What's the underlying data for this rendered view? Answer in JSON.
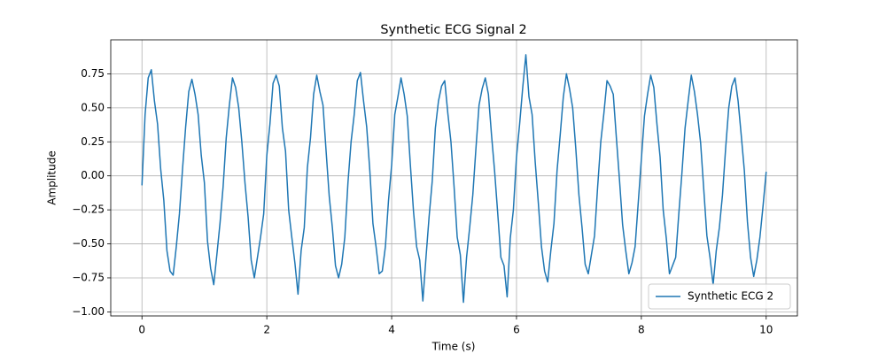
{
  "chart_data": {
    "type": "line",
    "title": "Synthetic ECG Signal 2",
    "xlabel": "Time (s)",
    "ylabel": "Amplitude",
    "grid": true,
    "legend": "lower right",
    "xlim": [
      -0.5,
      10.5
    ],
    "ylim": [
      -1.03,
      1.0
    ],
    "xticks": [
      0,
      2,
      4,
      6,
      8,
      10
    ],
    "yticks": [
      {
        "value": -1,
        "label": "−1.00"
      },
      {
        "value": -0.75,
        "label": "−0.75"
      },
      {
        "value": -0.5,
        "label": "−0.50"
      },
      {
        "value": -0.25,
        "label": "−0.25"
      },
      {
        "value": 0,
        "label": "0.00"
      },
      0.25,
      {
        "value": 0.5,
        "label": "0.50"
      },
      0.75
    ],
    "x": [
      0,
      0.05,
      0.1,
      0.15,
      0.2,
      0.25,
      0.3,
      0.35,
      0.4,
      0.45,
      0.5,
      0.55,
      0.6,
      0.65,
      0.7,
      0.75,
      0.8,
      0.85,
      0.9,
      0.95,
      1,
      1.05,
      1.1,
      1.15,
      1.2,
      1.25,
      1.3,
      1.35,
      1.4,
      1.45,
      1.5,
      1.55,
      1.6,
      1.65,
      1.7,
      1.75,
      1.8,
      1.85,
      1.9,
      1.95,
      2,
      2.05,
      2.1,
      2.15,
      2.2,
      2.25,
      2.3,
      2.35,
      2.4,
      2.45,
      2.5,
      2.55,
      2.6,
      2.65,
      2.7,
      2.75,
      2.8,
      2.85,
      2.9,
      2.95,
      3,
      3.05,
      3.1,
      3.15,
      3.2,
      3.25,
      3.3,
      3.35,
      3.4,
      3.45,
      3.5,
      3.55,
      3.6,
      3.65,
      3.7,
      3.75,
      3.8,
      3.85,
      3.9,
      3.95,
      4,
      4.05,
      4.1,
      4.15,
      4.2,
      4.25,
      4.3,
      4.35,
      4.4,
      4.45,
      4.5,
      4.55,
      4.6,
      4.65,
      4.7,
      4.75,
      4.8,
      4.85,
      4.9,
      4.95,
      5,
      5.05,
      5.1,
      5.15,
      5.2,
      5.25,
      5.3,
      5.35,
      5.4,
      5.45,
      5.5,
      5.55,
      5.6,
      5.65,
      5.7,
      5.75,
      5.8,
      5.85,
      5.9,
      5.95,
      6,
      6.05,
      6.1,
      6.15,
      6.2,
      6.25,
      6.3,
      6.35,
      6.4,
      6.45,
      6.5,
      6.55,
      6.6,
      6.65,
      6.7,
      6.75,
      6.8,
      6.85,
      6.9,
      6.95,
      7,
      7.05,
      7.1,
      7.15,
      7.2,
      7.25,
      7.3,
      7.35,
      7.4,
      7.45,
      7.5,
      7.55,
      7.6,
      7.65,
      7.7,
      7.75,
      7.8,
      7.85,
      7.9,
      7.95,
      8,
      8.05,
      8.1,
      8.15,
      8.2,
      8.25,
      8.3,
      8.35,
      8.4,
      8.45,
      8.5,
      8.55,
      8.6,
      8.65,
      8.7,
      8.75,
      8.8,
      8.85,
      8.9,
      8.95,
      9,
      9.05,
      9.1,
      9.15,
      9.2,
      9.25,
      9.3,
      9.35,
      9.4,
      9.45,
      9.5,
      9.55,
      9.6,
      9.65,
      9.7,
      9.75,
      9.8,
      9.85,
      9.9,
      9.95,
      10
    ],
    "series": [
      {
        "name": "Synthetic ECG 2",
        "color": "#1f77b4",
        "values": [
          -0.07,
          0.45,
          0.72,
          0.78,
          0.55,
          0.38,
          0.05,
          -0.18,
          -0.55,
          -0.7,
          -0.73,
          -0.52,
          -0.28,
          0.05,
          0.36,
          0.62,
          0.71,
          0.6,
          0.45,
          0.15,
          -0.05,
          -0.48,
          -0.68,
          -0.8,
          -0.58,
          -0.35,
          -0.08,
          0.28,
          0.52,
          0.72,
          0.65,
          0.5,
          0.25,
          -0.05,
          -0.3,
          -0.62,
          -0.75,
          -0.6,
          -0.45,
          -0.28,
          0.15,
          0.38,
          0.68,
          0.74,
          0.66,
          0.35,
          0.18,
          -0.25,
          -0.45,
          -0.64,
          -0.87,
          -0.55,
          -0.38,
          0.06,
          0.28,
          0.6,
          0.74,
          0.62,
          0.52,
          0.18,
          -0.15,
          -0.38,
          -0.66,
          -0.75,
          -0.65,
          -0.45,
          -0.05,
          0.25,
          0.45,
          0.7,
          0.76,
          0.55,
          0.36,
          0.04,
          -0.35,
          -0.52,
          -0.72,
          -0.7,
          -0.52,
          -0.18,
          0.08,
          0.45,
          0.58,
          0.72,
          0.6,
          0.44,
          0.08,
          -0.26,
          -0.52,
          -0.62,
          -0.92,
          -0.6,
          -0.3,
          -0.04,
          0.35,
          0.55,
          0.66,
          0.7,
          0.46,
          0.25,
          -0.08,
          -0.45,
          -0.58,
          -0.93,
          -0.6,
          -0.38,
          -0.14,
          0.2,
          0.52,
          0.64,
          0.72,
          0.6,
          0.3,
          0.03,
          -0.28,
          -0.6,
          -0.66,
          -0.89,
          -0.46,
          -0.25,
          0.14,
          0.38,
          0.65,
          0.89,
          0.58,
          0.45,
          0.1,
          -0.2,
          -0.52,
          -0.7,
          -0.78,
          -0.55,
          -0.35,
          0.04,
          0.3,
          0.58,
          0.75,
          0.64,
          0.5,
          0.2,
          -0.14,
          -0.38,
          -0.65,
          -0.72,
          -0.58,
          -0.44,
          -0.08,
          0.25,
          0.46,
          0.7,
          0.66,
          0.6,
          0.28,
          -0.03,
          -0.36,
          -0.55,
          -0.72,
          -0.64,
          -0.52,
          -0.2,
          0.12,
          0.44,
          0.6,
          0.74,
          0.65,
          0.38,
          0.14,
          -0.25,
          -0.46,
          -0.72,
          -0.66,
          -0.6,
          -0.28,
          0.02,
          0.35,
          0.55,
          0.74,
          0.62,
          0.45,
          0.24,
          -0.1,
          -0.44,
          -0.6,
          -0.8,
          -0.55,
          -0.38,
          -0.14,
          0.2,
          0.5,
          0.66,
          0.72,
          0.55,
          0.3,
          0.04,
          -0.34,
          -0.6,
          -0.74,
          -0.62,
          -0.45,
          -0.22,
          0.03
        ]
      }
    ]
  }
}
